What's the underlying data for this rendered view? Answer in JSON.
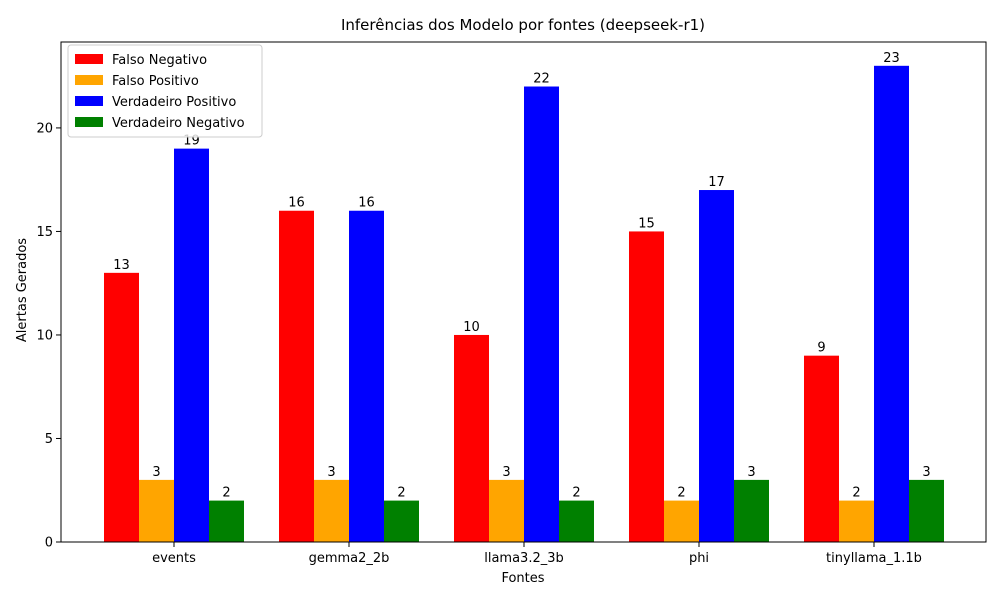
{
  "chart_data": {
    "type": "bar",
    "title": "Inferências dos Modelo por fontes (deepseek-r1)",
    "xlabel": "Fontes",
    "ylabel": "Alertas Gerados",
    "categories": [
      "events",
      "gemma2_2b",
      "llama3.2_3b",
      "phi",
      "tinyllama_1.1b"
    ],
    "ylim": [
      0,
      24.15
    ],
    "yticks": [
      0,
      5,
      10,
      15,
      20
    ],
    "grid": false,
    "legend_position": "top-left",
    "series": [
      {
        "name": "Falso Negativo",
        "color": "#ff0000",
        "values": [
          13,
          16,
          10,
          15,
          9
        ]
      },
      {
        "name": "Falso Positivo",
        "color": "#ffa500",
        "values": [
          3,
          3,
          3,
          2,
          2
        ]
      },
      {
        "name": "Verdadeiro Positivo",
        "color": "#0000ff",
        "values": [
          19,
          16,
          22,
          17,
          23
        ]
      },
      {
        "name": "Verdadeiro Negativo",
        "color": "#008000",
        "values": [
          2,
          2,
          2,
          3,
          3
        ]
      }
    ]
  }
}
